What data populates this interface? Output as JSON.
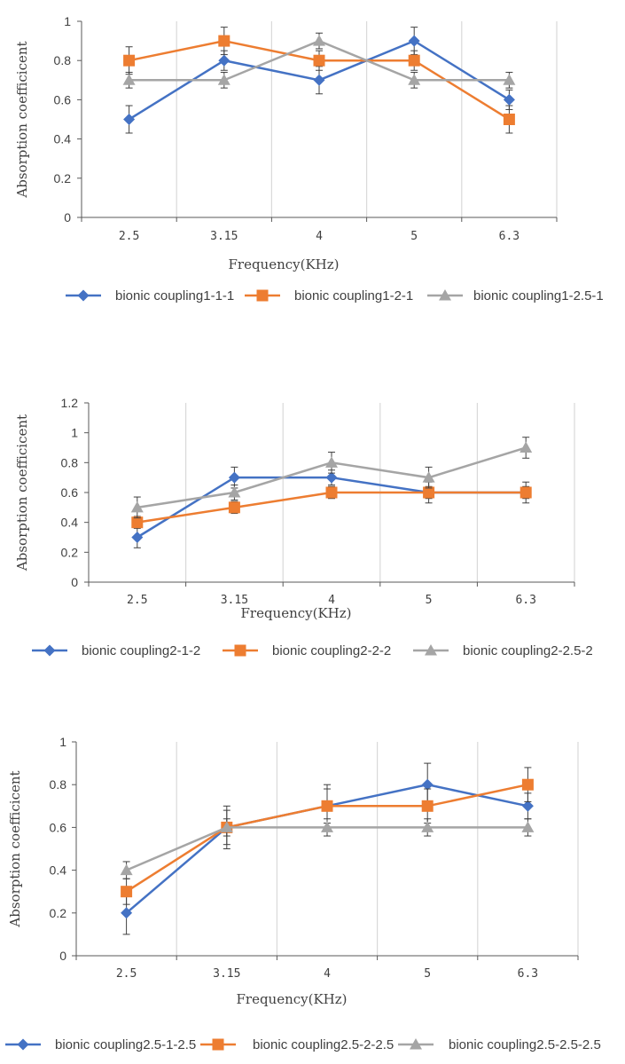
{
  "colors": {
    "series": [
      "#4472C4",
      "#ED7D31",
      "#A5A5A5"
    ],
    "grid": "#D9D9D9",
    "axis": "#595959",
    "text": "#404040",
    "errorbar": "#404040"
  },
  "chart_data": [
    {
      "type": "line",
      "title": "",
      "xlabel": "Frequency(KHz)",
      "ylabel": "Absorption coefficicent",
      "categories": [
        "2.5",
        "3.15",
        "4",
        "5",
        "6.3"
      ],
      "ylim": [
        0,
        1
      ],
      "yticks": [
        "0",
        "0.2",
        "0.4",
        "0.6",
        "0.8",
        "1"
      ],
      "grid": "vertical",
      "legend": "bottom",
      "series": [
        {
          "name": "bionic coupling1-1-1",
          "marker": "diamond",
          "values": [
            0.5,
            0.8,
            0.7,
            0.9,
            0.6
          ],
          "errors": [
            0.07,
            0.05,
            0.07,
            0.07,
            0.05
          ]
        },
        {
          "name": "bionic coupling1-2-1",
          "marker": "square",
          "values": [
            0.8,
            0.9,
            0.8,
            0.8,
            0.5
          ],
          "errors": [
            0.07,
            0.07,
            0.05,
            0.05,
            0.07
          ]
        },
        {
          "name": "bionic coupling1-2.5-1",
          "marker": "triangle",
          "values": [
            0.7,
            0.7,
            0.9,
            0.7,
            0.7
          ],
          "errors": [
            0.04,
            0.04,
            0.04,
            0.04,
            0.04
          ]
        }
      ]
    },
    {
      "type": "line",
      "title": "",
      "xlabel": "Frequency(KHz)",
      "ylabel": "Absorption coefficicent",
      "categories": [
        "2.5",
        "3.15",
        "4",
        "5",
        "6.3"
      ],
      "ylim": [
        0,
        1.2
      ],
      "yticks": [
        "0",
        "0.2",
        "0.4",
        "0.6",
        "0.8",
        "1",
        "1.2"
      ],
      "grid": "vertical",
      "legend": "bottom",
      "series": [
        {
          "name": "bionic coupling2-1-2",
          "marker": "diamond",
          "values": [
            0.3,
            0.7,
            0.7,
            0.6,
            0.6
          ],
          "errors": [
            0.07,
            0.07,
            0.05,
            0.07,
            0.07
          ]
        },
        {
          "name": "bionic coupling2-2-2",
          "marker": "square",
          "values": [
            0.4,
            0.5,
            0.6,
            0.6,
            0.6
          ],
          "errors": [
            0.04,
            0.04,
            0.04,
            0.04,
            0.04
          ]
        },
        {
          "name": "bionic coupling2-2.5-2",
          "marker": "triangle",
          "values": [
            0.5,
            0.6,
            0.8,
            0.7,
            0.9
          ],
          "errors": [
            0.07,
            0.05,
            0.07,
            0.07,
            0.07
          ]
        }
      ]
    },
    {
      "type": "line",
      "title": "",
      "xlabel": "Frequency(KHz)",
      "ylabel": "Absorption coefficicent",
      "categories": [
        "2.5",
        "3.15",
        "4",
        "5",
        "6.3"
      ],
      "ylim": [
        0,
        1
      ],
      "yticks": [
        "0",
        "0.2",
        "0.4",
        "0.6",
        "0.8",
        "1"
      ],
      "grid": "vertical",
      "legend": "bottom",
      "series": [
        {
          "name": "bionic coupling2.5-1-2.5",
          "marker": "diamond",
          "values": [
            0.2,
            0.6,
            0.7,
            0.8,
            0.7
          ],
          "errors": [
            0.1,
            0.1,
            0.1,
            0.1,
            0.06
          ]
        },
        {
          "name": "bionic coupling2.5-2-2.5",
          "marker": "square",
          "values": [
            0.3,
            0.6,
            0.7,
            0.7,
            0.8
          ],
          "errors": [
            0.06,
            0.08,
            0.08,
            0.08,
            0.08
          ]
        },
        {
          "name": "bionic coupling2.5-2.5-2.5",
          "marker": "triangle",
          "values": [
            0.4,
            0.6,
            0.6,
            0.6,
            0.6
          ],
          "errors": [
            0.04,
            0.04,
            0.04,
            0.04,
            0.04
          ]
        }
      ]
    }
  ]
}
